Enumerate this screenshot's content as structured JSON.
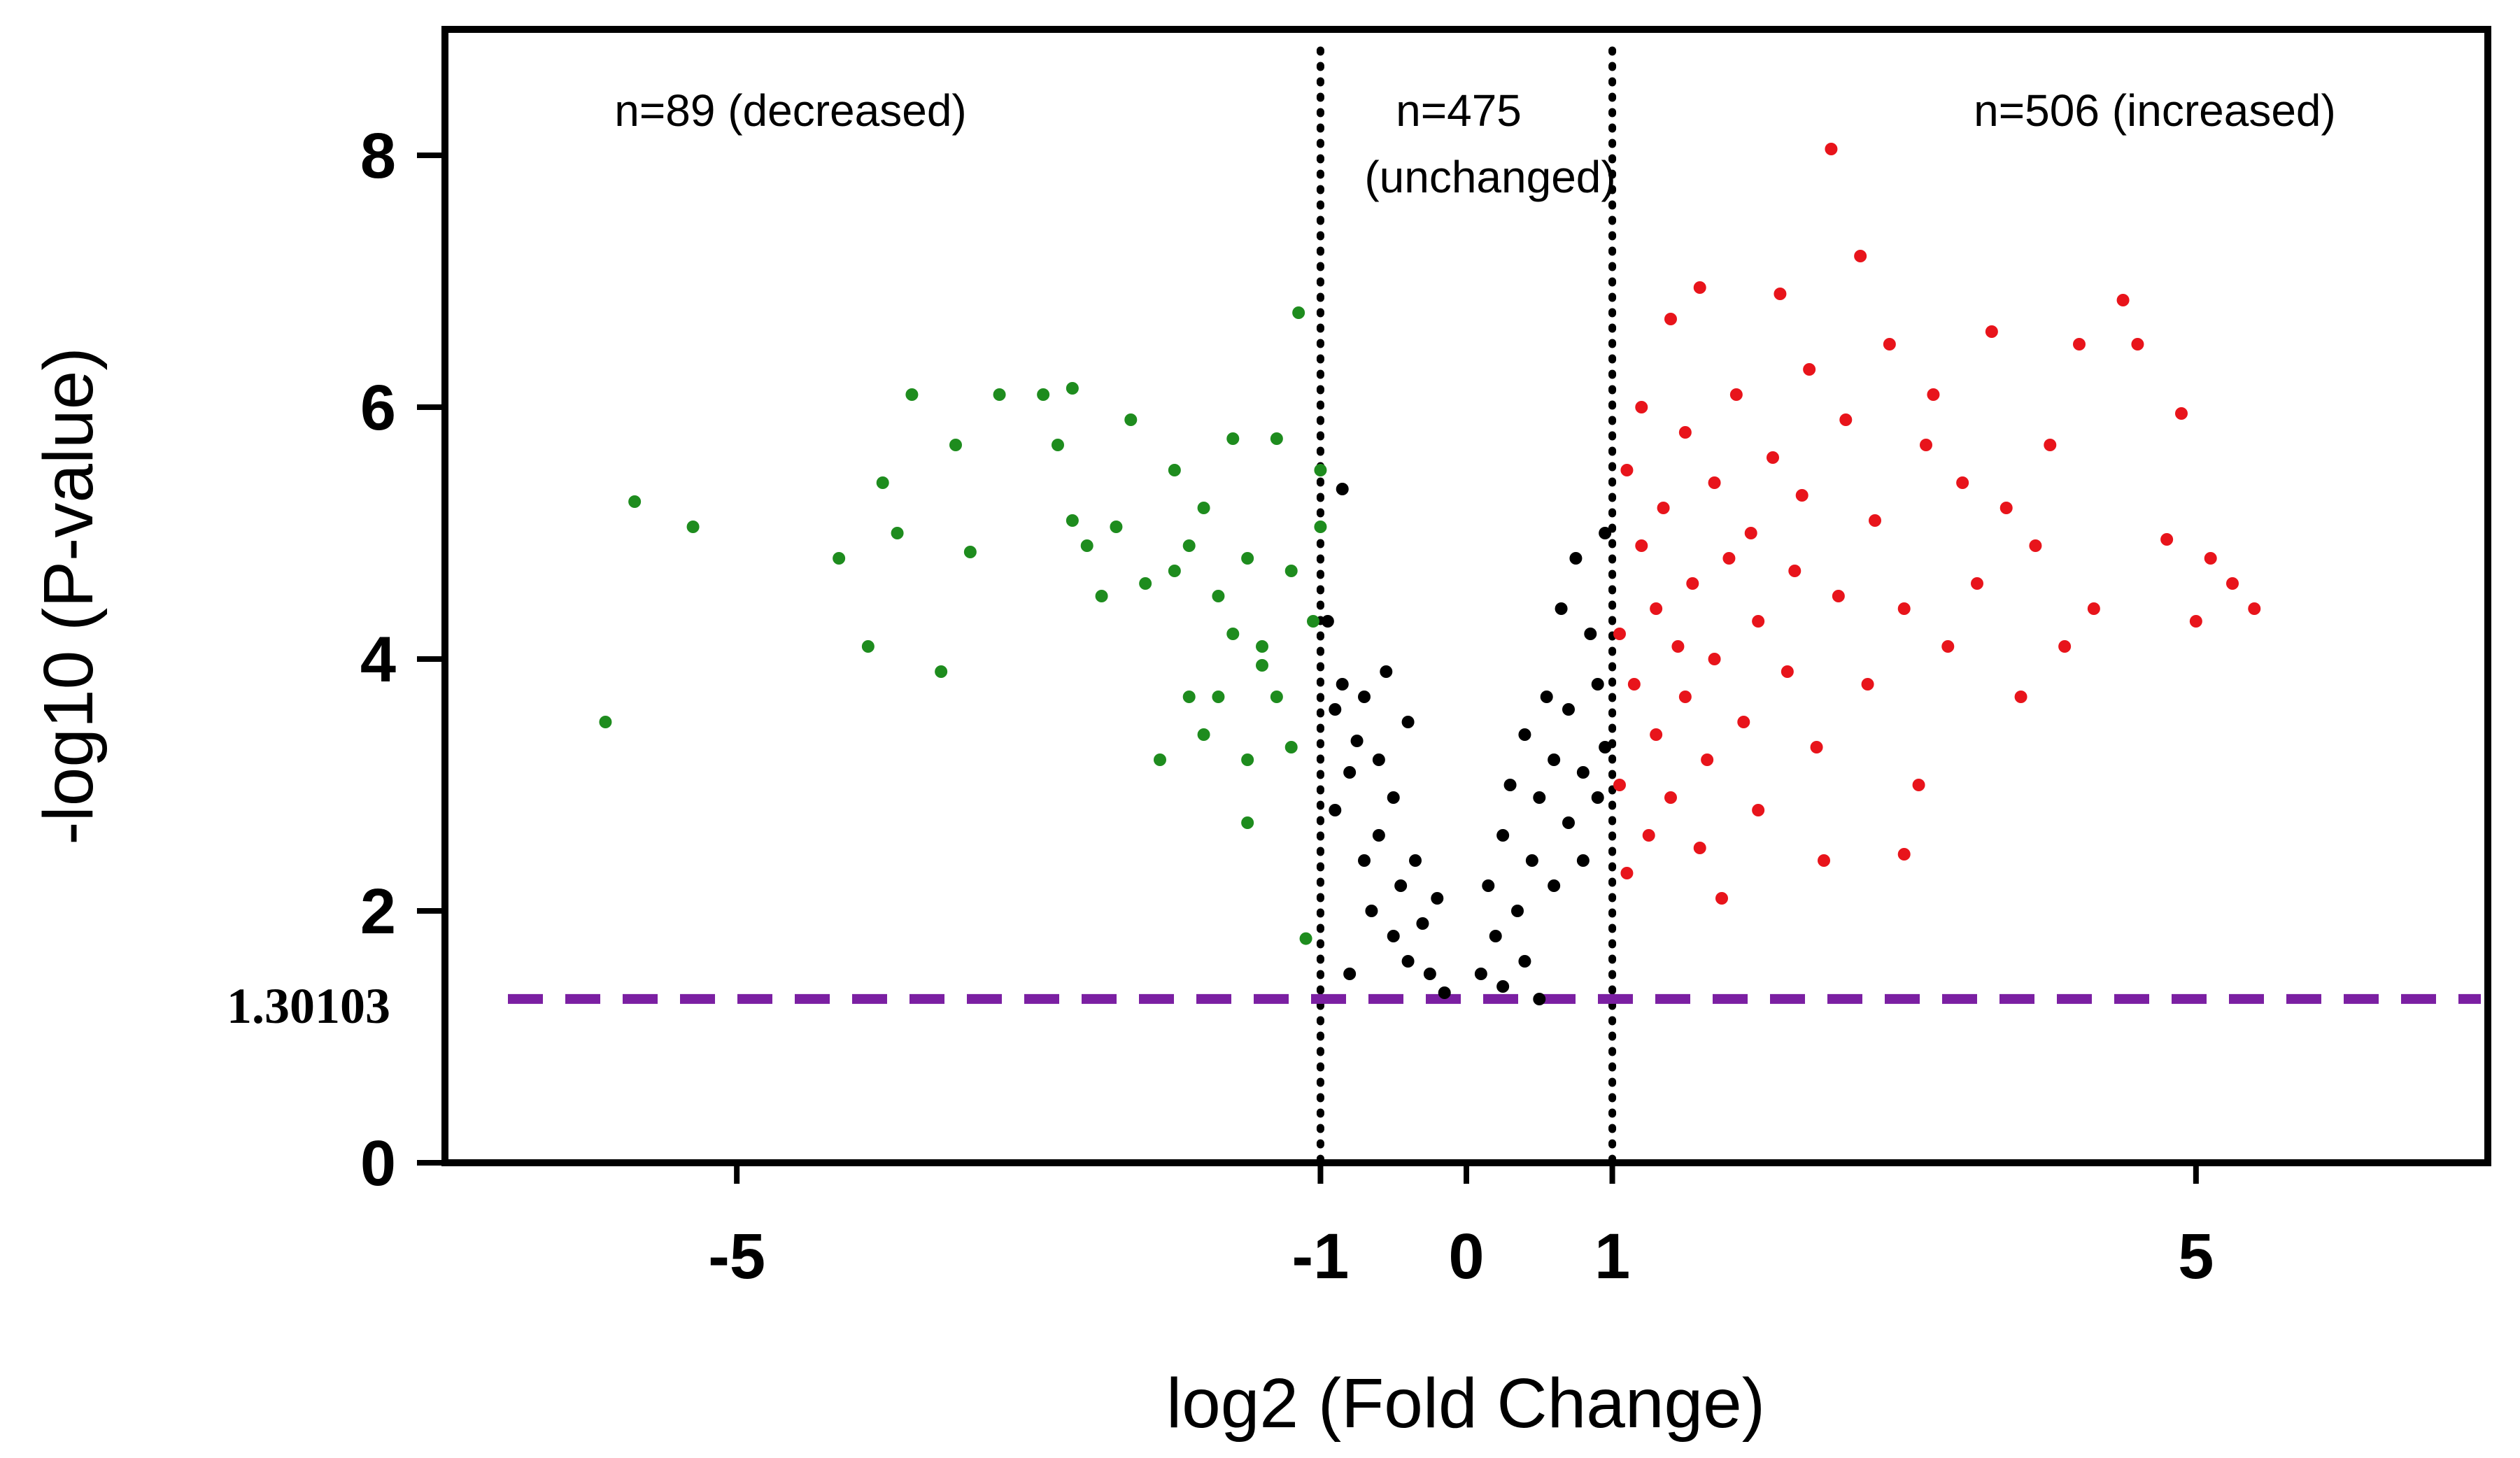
{
  "chart_data": {
    "type": "scatter",
    "title": "",
    "xlabel": "log2 (Fold Change)",
    "ylabel": "-log10 (P-value)",
    "xlim": [
      -7,
      7
    ],
    "ylim": [
      0,
      9
    ],
    "x_ticks": [
      {
        "value": -5,
        "label": "-5"
      },
      {
        "value": -1,
        "label": "-1"
      },
      {
        "value": 0,
        "label": "0"
      },
      {
        "value": 1,
        "label": "1"
      },
      {
        "value": 5,
        "label": "5"
      }
    ],
    "y_ticks": [
      {
        "value": 0,
        "label": "0"
      },
      {
        "value": 2,
        "label": "2"
      },
      {
        "value": 4,
        "label": "4"
      },
      {
        "value": 6,
        "label": "6"
      },
      {
        "value": 8,
        "label": "8"
      }
    ],
    "grid": false,
    "thresholds": {
      "fold_change": [
        -1,
        1
      ],
      "p_value": {
        "value": 1.30103,
        "label": "1.30103",
        "color": "#7B1FA2"
      }
    },
    "regions": [
      {
        "name": "decreased",
        "label": "n=89 (decreased)",
        "count": 89,
        "color": "#1E8C1E"
      },
      {
        "name": "unchanged",
        "label_line1": "n=475",
        "label_line2": "(unchanged)",
        "count": 475,
        "color": "#000000"
      },
      {
        "name": "increased",
        "label": "n=506 (increased)",
        "count": 506,
        "color": "#E8141B"
      }
    ],
    "series": [
      {
        "name": "decreased",
        "color": "#1E8C1E",
        "points": [
          [
            -5.9,
            3.5
          ],
          [
            -5.7,
            5.25
          ],
          [
            -5.3,
            5.05
          ],
          [
            -4.3,
            4.8
          ],
          [
            -4.1,
            4.1
          ],
          [
            -4.0,
            5.4
          ],
          [
            -3.9,
            5.0
          ],
          [
            -3.8,
            6.1
          ],
          [
            -3.6,
            3.9
          ],
          [
            -3.5,
            5.7
          ],
          [
            -3.4,
            4.85
          ],
          [
            -3.2,
            6.1
          ],
          [
            -2.9,
            6.1
          ],
          [
            -2.8,
            5.7
          ],
          [
            -2.7,
            6.15
          ],
          [
            -2.7,
            5.1
          ],
          [
            -2.6,
            4.9
          ],
          [
            -2.5,
            4.5
          ],
          [
            -2.4,
            5.05
          ],
          [
            -2.3,
            5.9
          ],
          [
            -2.2,
            4.6
          ],
          [
            -2.1,
            3.2
          ],
          [
            -2.0,
            4.7
          ],
          [
            -2.0,
            5.5
          ],
          [
            -1.9,
            3.7
          ],
          [
            -1.9,
            4.9
          ],
          [
            -1.8,
            5.2
          ],
          [
            -1.8,
            3.4
          ],
          [
            -1.7,
            4.5
          ],
          [
            -1.7,
            3.7
          ],
          [
            -1.6,
            5.75
          ],
          [
            -1.6,
            4.2
          ],
          [
            -1.5,
            4.8
          ],
          [
            -1.5,
            3.2
          ],
          [
            -1.5,
            2.7
          ],
          [
            -1.4,
            4.1
          ],
          [
            -1.4,
            3.95
          ],
          [
            -1.3,
            5.75
          ],
          [
            -1.3,
            3.7
          ],
          [
            -1.2,
            4.7
          ],
          [
            -1.2,
            3.3
          ],
          [
            -1.15,
            6.75
          ],
          [
            -1.1,
            1.78
          ],
          [
            -1.05,
            4.3
          ],
          [
            -1.0,
            5.5
          ],
          [
            -1.0,
            5.05
          ]
        ]
      },
      {
        "name": "unchanged",
        "color": "#000000",
        "points": [
          [
            -0.95,
            4.3
          ],
          [
            -0.9,
            3.6
          ],
          [
            -0.9,
            2.8
          ],
          [
            -0.85,
            3.8
          ],
          [
            -0.85,
            5.35
          ],
          [
            -0.8,
            3.1
          ],
          [
            -0.8,
            1.5
          ],
          [
            -0.75,
            3.35
          ],
          [
            -0.7,
            2.4
          ],
          [
            -0.7,
            3.7
          ],
          [
            -0.65,
            2.0
          ],
          [
            -0.6,
            3.2
          ],
          [
            -0.6,
            2.6
          ],
          [
            -0.55,
            3.9
          ],
          [
            -0.5,
            1.8
          ],
          [
            -0.5,
            2.9
          ],
          [
            -0.45,
            2.2
          ],
          [
            -0.4,
            3.5
          ],
          [
            -0.4,
            1.6
          ],
          [
            -0.35,
            2.4
          ],
          [
            -0.3,
            1.9
          ],
          [
            -0.25,
            1.5
          ],
          [
            -0.2,
            2.1
          ],
          [
            -0.15,
            1.35
          ],
          [
            0.1,
            1.5
          ],
          [
            0.15,
            2.2
          ],
          [
            0.2,
            1.8
          ],
          [
            0.25,
            2.6
          ],
          [
            0.25,
            1.4
          ],
          [
            0.3,
            3.0
          ],
          [
            0.35,
            2.0
          ],
          [
            0.4,
            3.4
          ],
          [
            0.4,
            1.6
          ],
          [
            0.45,
            2.4
          ],
          [
            0.5,
            2.9
          ],
          [
            0.5,
            1.3
          ],
          [
            0.55,
            3.7
          ],
          [
            0.6,
            2.2
          ],
          [
            0.6,
            3.2
          ],
          [
            0.65,
            4.4
          ],
          [
            0.7,
            2.7
          ],
          [
            0.7,
            3.6
          ],
          [
            0.75,
            4.8
          ],
          [
            0.8,
            3.1
          ],
          [
            0.8,
            2.4
          ],
          [
            0.85,
            4.2
          ],
          [
            0.9,
            3.8
          ],
          [
            0.9,
            2.9
          ],
          [
            0.95,
            5.0
          ],
          [
            0.95,
            3.3
          ]
        ]
      },
      {
        "name": "increased",
        "color": "#E8141B",
        "points": [
          [
            1.05,
            4.2
          ],
          [
            1.05,
            3.0
          ],
          [
            1.1,
            5.5
          ],
          [
            1.1,
            2.3
          ],
          [
            1.15,
            3.8
          ],
          [
            1.2,
            4.9
          ],
          [
            1.2,
            6.0
          ],
          [
            1.25,
            2.6
          ],
          [
            1.3,
            4.4
          ],
          [
            1.3,
            3.4
          ],
          [
            1.35,
            5.2
          ],
          [
            1.4,
            6.7
          ],
          [
            1.4,
            2.9
          ],
          [
            1.45,
            4.1
          ],
          [
            1.5,
            3.7
          ],
          [
            1.5,
            5.8
          ],
          [
            1.55,
            4.6
          ],
          [
            1.6,
            6.95
          ],
          [
            1.6,
            2.5
          ],
          [
            1.65,
            3.2
          ],
          [
            1.7,
            5.4
          ],
          [
            1.7,
            4.0
          ],
          [
            1.75,
            2.1
          ],
          [
            1.8,
            4.8
          ],
          [
            1.85,
            6.1
          ],
          [
            1.9,
            3.5
          ],
          [
            1.95,
            5.0
          ],
          [
            2.0,
            4.3
          ],
          [
            2.0,
            2.8
          ],
          [
            2.1,
            5.6
          ],
          [
            2.15,
            6.9
          ],
          [
            2.2,
            3.9
          ],
          [
            2.25,
            4.7
          ],
          [
            2.3,
            5.3
          ],
          [
            2.35,
            6.3
          ],
          [
            2.4,
            3.3
          ],
          [
            2.45,
            2.4
          ],
          [
            2.5,
            8.05
          ],
          [
            2.55,
            4.5
          ],
          [
            2.6,
            5.9
          ],
          [
            2.7,
            7.2
          ],
          [
            2.75,
            3.8
          ],
          [
            2.8,
            5.1
          ],
          [
            2.9,
            6.5
          ],
          [
            3.0,
            4.4
          ],
          [
            3.0,
            2.45
          ],
          [
            3.1,
            3.0
          ],
          [
            3.15,
            5.7
          ],
          [
            3.2,
            6.1
          ],
          [
            3.3,
            4.1
          ],
          [
            3.4,
            5.4
          ],
          [
            3.5,
            4.6
          ],
          [
            3.6,
            6.6
          ],
          [
            3.7,
            5.2
          ],
          [
            3.8,
            3.7
          ],
          [
            3.9,
            4.9
          ],
          [
            4.0,
            5.7
          ],
          [
            4.1,
            4.1
          ],
          [
            4.2,
            6.5
          ],
          [
            4.3,
            4.4
          ],
          [
            4.5,
            6.85
          ],
          [
            4.6,
            6.5
          ],
          [
            4.8,
            4.95
          ],
          [
            4.9,
            5.95
          ],
          [
            5.0,
            4.3
          ],
          [
            5.1,
            4.8
          ],
          [
            5.25,
            4.6
          ],
          [
            5.4,
            4.4
          ]
        ]
      }
    ]
  }
}
